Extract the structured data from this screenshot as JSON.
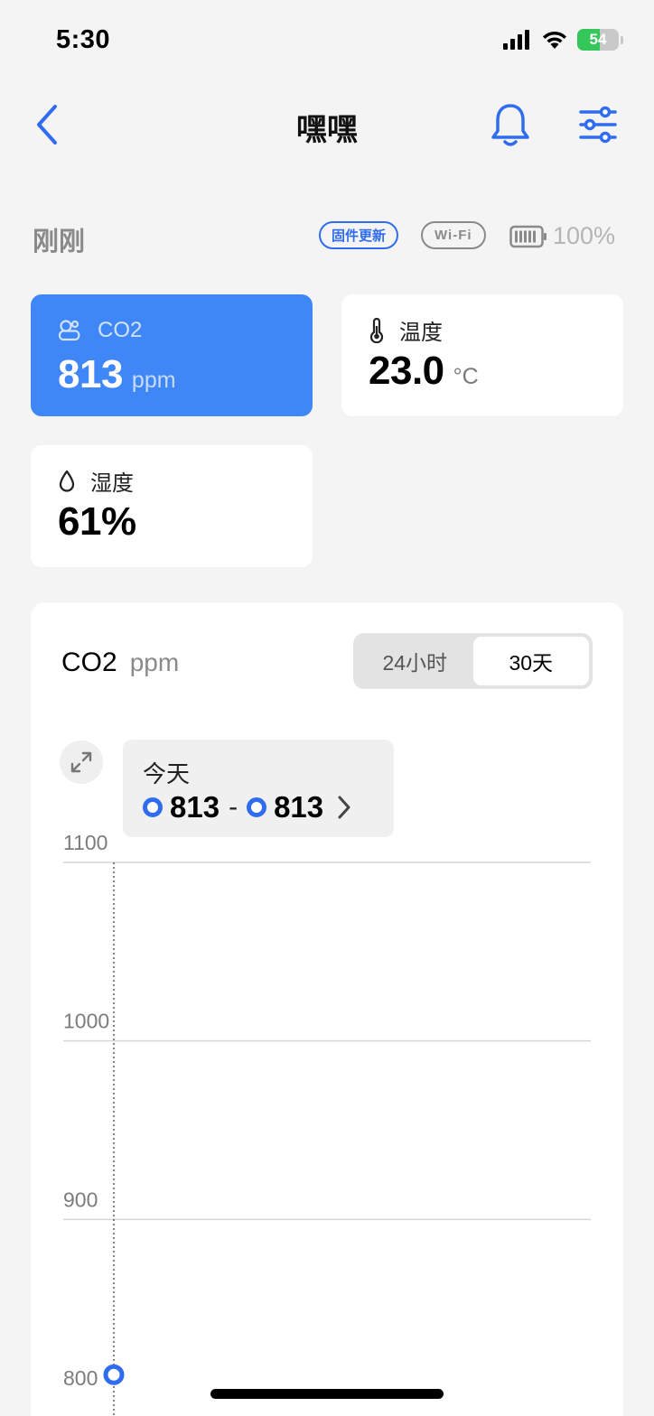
{
  "status_bar": {
    "time": "5:30",
    "battery_level": "54",
    "battery_fraction": 0.54
  },
  "nav": {
    "title": "嘿嘿",
    "back_icon": "chevron-left-icon",
    "bell_icon": "bell-icon",
    "settings_icon": "sliders-icon"
  },
  "info": {
    "updated": "刚刚",
    "firmware_badge": "固件更新",
    "wifi_badge": "Wi-Fi",
    "battery_percent": "100%"
  },
  "metrics": {
    "co2": {
      "label": "CO2",
      "value": "813",
      "unit": "ppm",
      "icon": "co2-cloud-icon"
    },
    "temperature": {
      "label": "温度",
      "value": "23.0",
      "unit": "°C",
      "icon": "thermometer-icon"
    },
    "humidity": {
      "label": "湿度",
      "value": "61%",
      "icon": "droplet-icon"
    }
  },
  "chart": {
    "title": "CO2",
    "unit": "ppm",
    "tabs": [
      {
        "label": "24小时",
        "active": false
      },
      {
        "label": "30天",
        "active": true
      }
    ],
    "tooltip": {
      "date": "今天",
      "min": "813",
      "separator": "-",
      "max": "813"
    },
    "accent": "#2f6cf0"
  },
  "chart_data": {
    "type": "line",
    "title": "CO2",
    "ylabel": "ppm",
    "xlabel": "",
    "y_ticks": [
      1100,
      1000,
      900,
      800
    ],
    "ylim": [
      800,
      1100
    ],
    "grid": true,
    "series": [
      {
        "values": [
          813
        ]
      }
    ],
    "selected_point": {
      "value": 813
    }
  },
  "colors": {
    "accent": "#3f86f7",
    "link": "#2f6cf0",
    "background": "#f4f4f4",
    "card": "#ffffff"
  }
}
